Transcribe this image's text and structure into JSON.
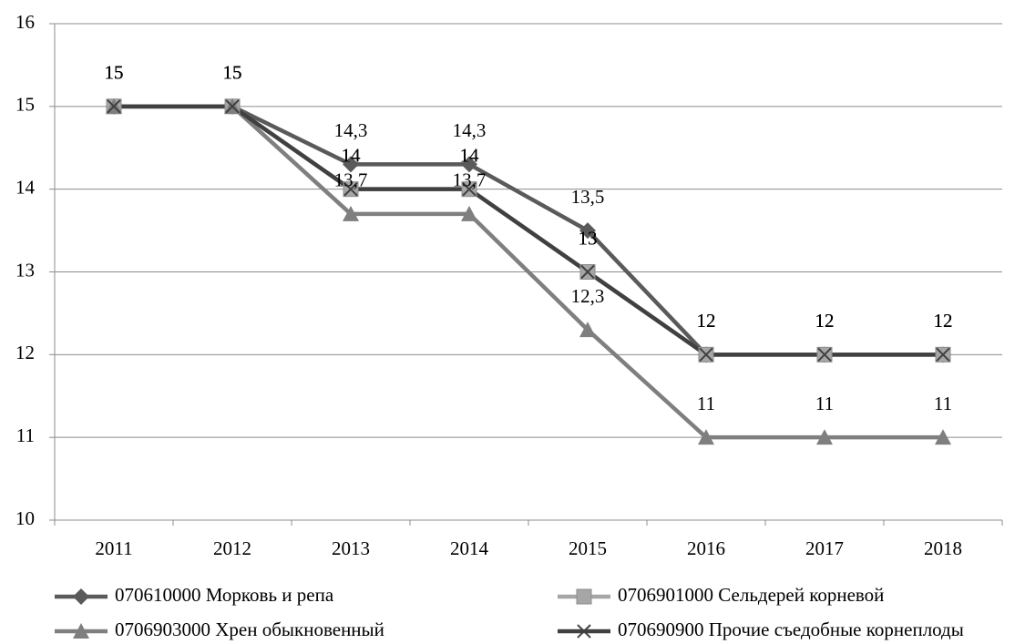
{
  "chart_data": {
    "type": "line",
    "categories": [
      "2011",
      "2012",
      "2013",
      "2014",
      "2015",
      "2016",
      "2017",
      "2018"
    ],
    "ylim": [
      10,
      16
    ],
    "yticks": [
      10,
      11,
      12,
      13,
      14,
      15,
      16
    ],
    "grid": true,
    "legend": "bottom",
    "series": [
      {
        "name": "070610000 Морковь и репа",
        "color": "#5a5a5a",
        "marker": "diamond",
        "values": [
          15,
          15,
          14.3,
          14.3,
          13.5,
          12,
          12,
          12
        ],
        "value_labels": [
          "15",
          "15",
          "14,3",
          "14,3",
          "13,5",
          "12",
          "12",
          "12"
        ]
      },
      {
        "name": "0706901000 Сельдерей корневой",
        "color": "#a6a6a6",
        "marker": "square",
        "values": [
          15,
          15,
          14,
          14,
          13,
          12,
          12,
          12
        ],
        "value_labels": [
          "15",
          "15",
          "14",
          "14",
          "13",
          "12",
          "12",
          "12"
        ]
      },
      {
        "name": "0706903000 Хрен обыкновенный",
        "color": "#7f7f7f",
        "marker": "triangle",
        "values": [
          15,
          15,
          13.7,
          13.7,
          12.3,
          11,
          11,
          11
        ],
        "value_labels": [
          "15",
          "15",
          "13,7",
          "13,7",
          "12,3",
          "11",
          "11",
          "11"
        ]
      },
      {
        "name": "070690900 Прочие съедобные корнеплоды",
        "color": "#404040",
        "marker": "x",
        "values": [
          15,
          15,
          14,
          14,
          13,
          12,
          12,
          12
        ],
        "value_labels": [
          "15",
          "15",
          "14",
          "14",
          "13",
          "12",
          "12",
          "12"
        ]
      }
    ]
  }
}
